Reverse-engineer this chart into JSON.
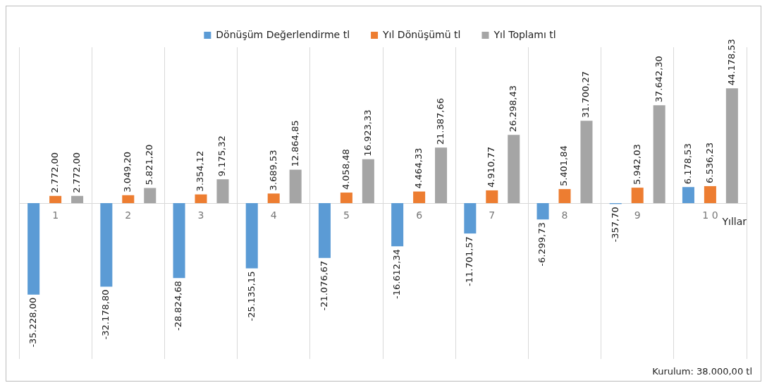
{
  "chart_data": {
    "type": "bar",
    "relative": false,
    "xlabel": "Yıllar",
    "categories": [
      "1",
      "2",
      "3",
      "4",
      "5",
      "6",
      "7",
      "8",
      "9",
      "1 0"
    ],
    "series": [
      {
        "name": "Dönüşüm Değerlendirme tl",
        "color": "#5b9bd5",
        "values": [
          -35228.0,
          -32178.8,
          -28824.68,
          -25135.15,
          -21076.67,
          -16612.34,
          -11701.57,
          -6299.73,
          -357.7,
          6178.53
        ],
        "value_labels": [
          "-35.228,00",
          "-32.178,80",
          "-28.824,68",
          "-25.135,15",
          "-21.076,67",
          "-16.612,34",
          "-11.701,57",
          "-6.299,73",
          "-357,70",
          "6.178,53"
        ]
      },
      {
        "name": "Yıl Dönüşümü tl",
        "color": "#ed7d31",
        "values": [
          2772.0,
          3049.2,
          3354.12,
          3689.53,
          4058.48,
          4464.33,
          4910.77,
          5401.84,
          5942.03,
          6536.23
        ],
        "value_labels": [
          "2.772,00",
          "3.049,20",
          "3.354,12",
          "3.689,53",
          "4.058,48",
          "4.464,33",
          "4.910,77",
          "5.401,84",
          "5.942,03",
          "6.536,23"
        ]
      },
      {
        "name": "Yıl Toplamı tl",
        "color": "#a5a5a5",
        "values": [
          2772.0,
          5821.2,
          9175.32,
          12864.85,
          16923.33,
          21387.66,
          26298.43,
          31700.27,
          37642.3,
          44178.53
        ],
        "value_labels": [
          "2.772,00",
          "5.821,20",
          "9.175,32",
          "12.864,85",
          "16.923,33",
          "21.387,66",
          "26.298,43",
          "31.700,27",
          "37.642,30",
          "44.178,53"
        ]
      }
    ],
    "grid": "x",
    "legend": "top",
    "annotations": [
      "Kurulum: 38.000,00 tl"
    ]
  }
}
